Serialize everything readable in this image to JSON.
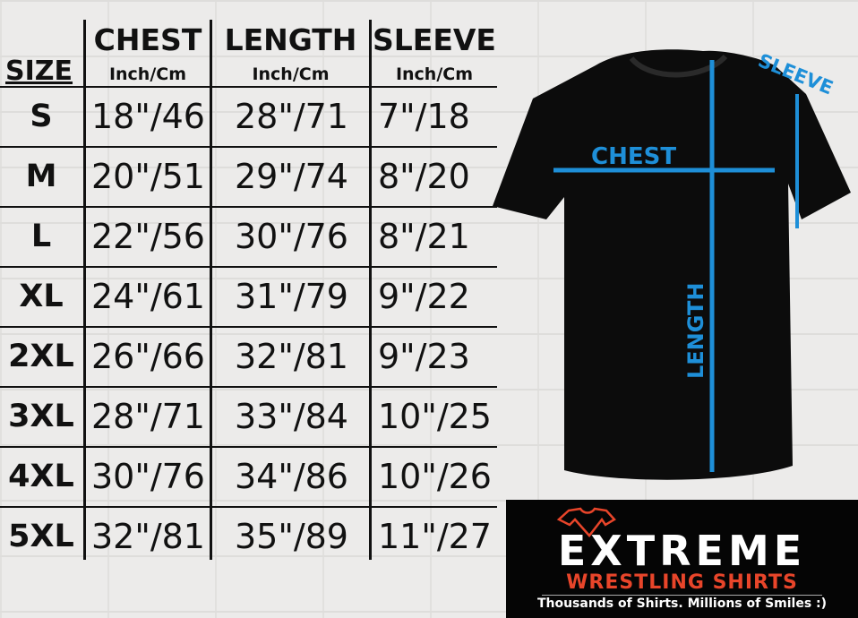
{
  "table": {
    "size_header": "SIZE",
    "columns": [
      {
        "label": "CHEST",
        "unit": "Inch/Cm"
      },
      {
        "label": "LENGTH",
        "unit": "Inch/Cm"
      },
      {
        "label": "SLEEVE",
        "unit": "Inch/Cm"
      }
    ],
    "rows": [
      {
        "size": "S",
        "chest": "18\"/46",
        "length": "28\"/71",
        "sleeve": "7\"/18"
      },
      {
        "size": "M",
        "chest": "20\"/51",
        "length": "29\"/74",
        "sleeve": "8\"/20"
      },
      {
        "size": "L",
        "chest": "22\"/56",
        "length": "30\"/76",
        "sleeve": "8\"/21"
      },
      {
        "size": "XL",
        "chest": "24\"/61",
        "length": "31\"/79",
        "sleeve": "9\"/22"
      },
      {
        "size": "2XL",
        "chest": "26\"/66",
        "length": "32\"/81",
        "sleeve": "9\"/23"
      },
      {
        "size": "3XL",
        "chest": "28\"/71",
        "length": "33\"/84",
        "sleeve": "10\"/25"
      },
      {
        "size": "4XL",
        "chest": "30\"/76",
        "length": "34\"/86",
        "sleeve": "10\"/26"
      },
      {
        "size": "5XL",
        "chest": "32\"/81",
        "length": "35\"/89",
        "sleeve": "11\"/27"
      }
    ]
  },
  "diagram": {
    "chest_label": "CHEST",
    "length_label": "LENGTH",
    "sleeve_label": "SLEEVE",
    "measure_color": "#1e8fd8",
    "shirt_color": "#0c0c0c"
  },
  "logo": {
    "name": "EXTREME",
    "subtitle": "WRESTLING SHIRTS",
    "tagline": "Thousands of Shirts. Millions of Smiles :)",
    "accent_color": "#e8452a"
  }
}
